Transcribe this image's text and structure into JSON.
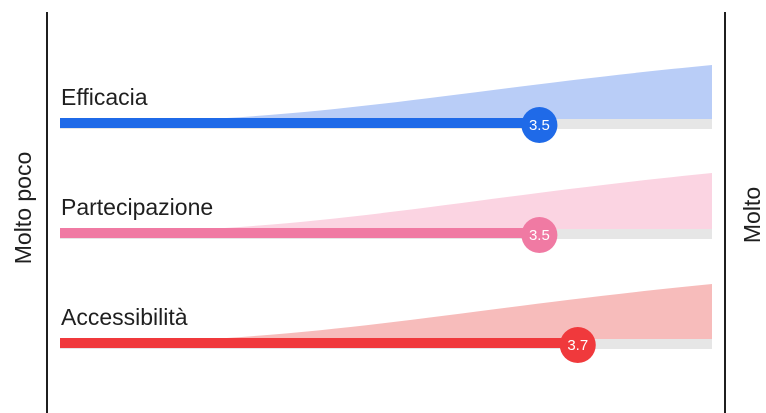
{
  "chart_data": {
    "type": "bar",
    "scale": {
      "min": 1,
      "max": 4.4,
      "min_label": "Molto poco",
      "max_label": "Molto"
    },
    "series": [
      {
        "name": "Efficacia",
        "value": 3.5,
        "value_label": "3.5",
        "color": "#1f6ae8",
        "fill_color": "#b9cdf7"
      },
      {
        "name": "Partecipazione",
        "value": 3.5,
        "value_label": "3.5",
        "color": "#f07aa3",
        "fill_color": "#fbd4e2"
      },
      {
        "name": "Accessibilità",
        "value": 3.7,
        "value_label": "3.7",
        "color": "#f0393c",
        "fill_color": "#f7bcbb"
      }
    ],
    "track_color": "#e6e6e6",
    "axis_color": "#1f1f1f"
  }
}
